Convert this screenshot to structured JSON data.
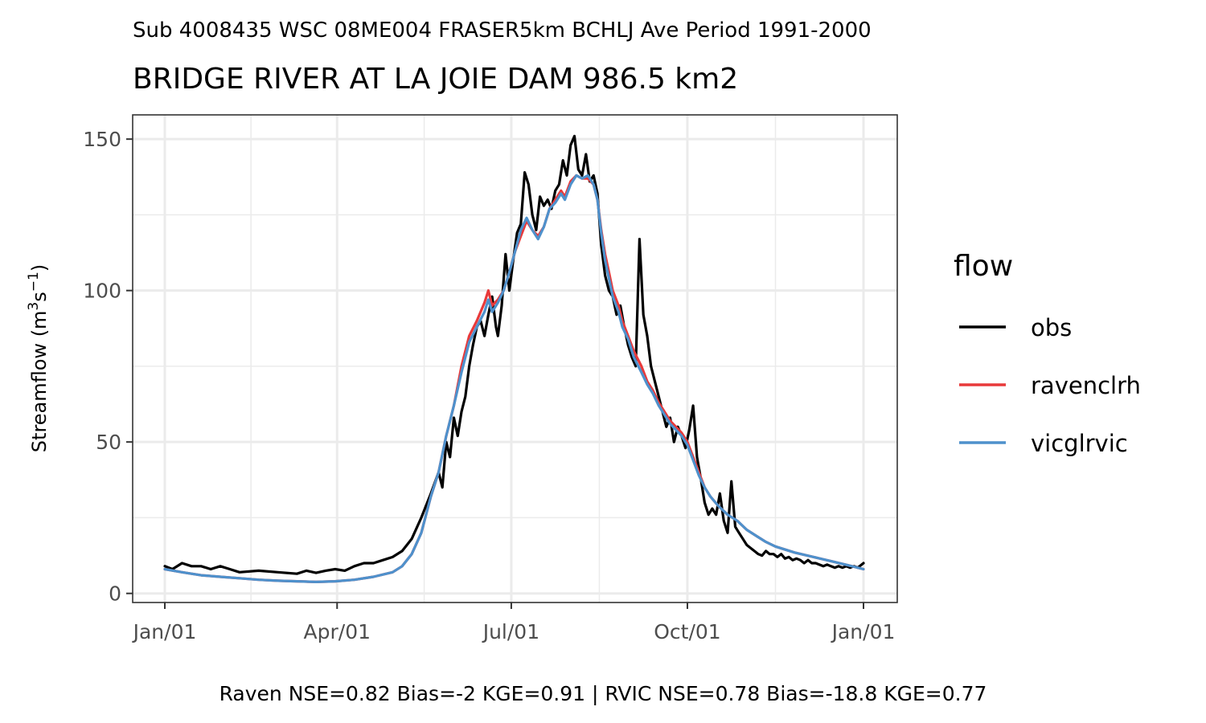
{
  "chart_data": {
    "type": "line",
    "subtitle": "Sub 4008435 WSC 08ME004 FRASER5km BCHLJ Ave Period 1991-2000",
    "title": "BRIDGE RIVER AT LA JOIE DAM 986.5 km2",
    "ylabel_main": "Streamflow (m",
    "ylabel_sup1": "3",
    "ylabel_mid": "s",
    "ylabel_sup2": "−1",
    "ylabel_end": ")",
    "xlabel": "",
    "caption": "Raven NSE=0.82 Bias=-2 KGE=0.91 | RVIC NSE=0.78 Bias=-18.8 KGE=0.77",
    "ylim": [
      -3,
      158
    ],
    "y_ticks": [
      0,
      50,
      100,
      150
    ],
    "y_tick_labels": [
      "0",
      "50",
      "100",
      "150"
    ],
    "x_axis": "day of year",
    "xlim": [
      "Dec/27",
      "Jan/07"
    ],
    "x_ticks": [
      "Jan/01",
      "Apr/01",
      "Jul/01",
      "Oct/01",
      "Jan/01"
    ],
    "x_tick_days": [
      1,
      91,
      182,
      274,
      366
    ],
    "x_minor_days": [
      46,
      136.5,
      228,
      320
    ],
    "y_minor": [
      25,
      75,
      125
    ],
    "grid": true,
    "legend": {
      "title": "flow",
      "position": "right"
    },
    "series": [
      {
        "name": "obs",
        "color": "#000000",
        "points": [
          [
            1,
            9
          ],
          [
            5,
            8
          ],
          [
            10,
            10
          ],
          [
            15,
            9
          ],
          [
            20,
            9
          ],
          [
            25,
            8
          ],
          [
            30,
            9
          ],
          [
            35,
            8
          ],
          [
            40,
            7
          ],
          [
            50,
            7.5
          ],
          [
            60,
            7
          ],
          [
            70,
            6.5
          ],
          [
            75,
            7.5
          ],
          [
            80,
            6.8
          ],
          [
            85,
            7.5
          ],
          [
            90,
            8
          ],
          [
            95,
            7.5
          ],
          [
            100,
            9
          ],
          [
            105,
            10
          ],
          [
            110,
            10
          ],
          [
            115,
            11
          ],
          [
            120,
            12
          ],
          [
            125,
            14
          ],
          [
            130,
            18
          ],
          [
            135,
            25
          ],
          [
            140,
            33
          ],
          [
            144,
            40
          ],
          [
            146,
            35
          ],
          [
            148,
            50
          ],
          [
            150,
            45
          ],
          [
            152,
            58
          ],
          [
            154,
            52
          ],
          [
            156,
            60
          ],
          [
            158,
            65
          ],
          [
            160,
            75
          ],
          [
            162,
            82
          ],
          [
            164,
            88
          ],
          [
            166,
            90
          ],
          [
            168,
            85
          ],
          [
            170,
            92
          ],
          [
            172,
            98
          ],
          [
            174,
            88
          ],
          [
            175,
            85
          ],
          [
            177,
            95
          ],
          [
            179,
            112
          ],
          [
            181,
            100
          ],
          [
            183,
            110
          ],
          [
            185,
            119
          ],
          [
            187,
            122
          ],
          [
            189,
            139
          ],
          [
            191,
            135
          ],
          [
            193,
            125
          ],
          [
            195,
            120
          ],
          [
            197,
            131
          ],
          [
            199,
            128
          ],
          [
            201,
            130
          ],
          [
            203,
            127
          ],
          [
            205,
            133
          ],
          [
            207,
            135
          ],
          [
            209,
            143
          ],
          [
            211,
            138
          ],
          [
            213,
            148
          ],
          [
            215,
            151
          ],
          [
            217,
            140
          ],
          [
            219,
            138
          ],
          [
            221,
            145
          ],
          [
            223,
            136
          ],
          [
            225,
            138
          ],
          [
            227,
            132
          ],
          [
            229,
            115
          ],
          [
            231,
            105
          ],
          [
            233,
            100
          ],
          [
            235,
            98
          ],
          [
            237,
            92
          ],
          [
            239,
            95
          ],
          [
            241,
            88
          ],
          [
            243,
            82
          ],
          [
            245,
            78
          ],
          [
            247,
            75
          ],
          [
            249,
            117
          ],
          [
            251,
            92
          ],
          [
            253,
            85
          ],
          [
            255,
            75
          ],
          [
            257,
            70
          ],
          [
            259,
            65
          ],
          [
            261,
            60
          ],
          [
            263,
            55
          ],
          [
            265,
            58
          ],
          [
            267,
            50
          ],
          [
            269,
            55
          ],
          [
            271,
            52
          ],
          [
            273,
            48
          ],
          [
            275,
            54
          ],
          [
            277,
            62
          ],
          [
            279,
            45
          ],
          [
            281,
            38
          ],
          [
            283,
            30
          ],
          [
            285,
            26
          ],
          [
            287,
            28
          ],
          [
            289,
            26
          ],
          [
            291,
            33
          ],
          [
            293,
            24
          ],
          [
            295,
            20
          ],
          [
            297,
            37
          ],
          [
            299,
            22
          ],
          [
            301,
            20
          ],
          [
            303,
            18
          ],
          [
            305,
            16
          ],
          [
            307,
            15
          ],
          [
            309,
            14
          ],
          [
            311,
            13
          ],
          [
            313,
            12.5
          ],
          [
            315,
            14
          ],
          [
            317,
            13
          ],
          [
            319,
            13
          ],
          [
            321,
            12
          ],
          [
            323,
            13
          ],
          [
            325,
            11.5
          ],
          [
            327,
            12
          ],
          [
            329,
            11
          ],
          [
            331,
            11.5
          ],
          [
            333,
            11
          ],
          [
            335,
            10
          ],
          [
            337,
            11
          ],
          [
            339,
            10
          ],
          [
            341,
            10
          ],
          [
            343,
            9.5
          ],
          [
            345,
            9
          ],
          [
            347,
            9.5
          ],
          [
            349,
            9
          ],
          [
            351,
            8.5
          ],
          [
            353,
            9
          ],
          [
            355,
            8.5
          ],
          [
            357,
            9
          ],
          [
            359,
            8.5
          ],
          [
            361,
            9
          ],
          [
            363,
            8.5
          ],
          [
            366,
            10
          ]
        ]
      },
      {
        "name": "ravenclrh",
        "color": "#e8393a",
        "points": [
          [
            1,
            8
          ],
          [
            10,
            7
          ],
          [
            20,
            6
          ],
          [
            30,
            5.5
          ],
          [
            40,
            5
          ],
          [
            50,
            4.5
          ],
          [
            60,
            4.2
          ],
          [
            70,
            4
          ],
          [
            80,
            3.8
          ],
          [
            90,
            4
          ],
          [
            100,
            4.5
          ],
          [
            110,
            5.5
          ],
          [
            120,
            7
          ],
          [
            125,
            9
          ],
          [
            130,
            13
          ],
          [
            135,
            20
          ],
          [
            140,
            32
          ],
          [
            144,
            40
          ],
          [
            148,
            52
          ],
          [
            152,
            62
          ],
          [
            156,
            75
          ],
          [
            160,
            85
          ],
          [
            164,
            90
          ],
          [
            168,
            96
          ],
          [
            170,
            100
          ],
          [
            172,
            95
          ],
          [
            175,
            97
          ],
          [
            178,
            100
          ],
          [
            181,
            106
          ],
          [
            184,
            113
          ],
          [
            187,
            118
          ],
          [
            190,
            123
          ],
          [
            193,
            120
          ],
          [
            196,
            118
          ],
          [
            199,
            121
          ],
          [
            202,
            127
          ],
          [
            205,
            130
          ],
          [
            208,
            133
          ],
          [
            210,
            131
          ],
          [
            213,
            136
          ],
          [
            216,
            138
          ],
          [
            219,
            137
          ],
          [
            222,
            137
          ],
          [
            225,
            135
          ],
          [
            227,
            130
          ],
          [
            229,
            120
          ],
          [
            231,
            112
          ],
          [
            233,
            106
          ],
          [
            235,
            100
          ],
          [
            238,
            95
          ],
          [
            240,
            90
          ],
          [
            243,
            85
          ],
          [
            246,
            80
          ],
          [
            250,
            75
          ],
          [
            253,
            70
          ],
          [
            256,
            67
          ],
          [
            259,
            63
          ],
          [
            262,
            60
          ],
          [
            265,
            57
          ],
          [
            268,
            55
          ],
          [
            271,
            53
          ],
          [
            274,
            50
          ],
          [
            277,
            45
          ],
          [
            280,
            40
          ],
          [
            283,
            35
          ],
          [
            286,
            32
          ],
          [
            290,
            29
          ],
          [
            295,
            26
          ],
          [
            300,
            24
          ],
          [
            305,
            21
          ],
          [
            310,
            19
          ],
          [
            315,
            17
          ],
          [
            320,
            15.5
          ],
          [
            330,
            13.5
          ],
          [
            340,
            12
          ],
          [
            350,
            10.5
          ],
          [
            360,
            9
          ],
          [
            366,
            8
          ]
        ]
      },
      {
        "name": "vicglrvic",
        "color": "#4e91cc",
        "points": [
          [
            1,
            8
          ],
          [
            10,
            7
          ],
          [
            20,
            6
          ],
          [
            30,
            5.5
          ],
          [
            40,
            5
          ],
          [
            50,
            4.5
          ],
          [
            60,
            4.2
          ],
          [
            70,
            4
          ],
          [
            80,
            3.8
          ],
          [
            90,
            4
          ],
          [
            100,
            4.5
          ],
          [
            110,
            5.5
          ],
          [
            120,
            7
          ],
          [
            125,
            9
          ],
          [
            130,
            13
          ],
          [
            135,
            20
          ],
          [
            140,
            32
          ],
          [
            144,
            40
          ],
          [
            148,
            52
          ],
          [
            152,
            62
          ],
          [
            156,
            73
          ],
          [
            160,
            83
          ],
          [
            164,
            88
          ],
          [
            168,
            93
          ],
          [
            170,
            97
          ],
          [
            172,
            93
          ],
          [
            175,
            96
          ],
          [
            178,
            100
          ],
          [
            181,
            106
          ],
          [
            184,
            113
          ],
          [
            187,
            120
          ],
          [
            190,
            124
          ],
          [
            193,
            120
          ],
          [
            196,
            117
          ],
          [
            199,
            121
          ],
          [
            202,
            127
          ],
          [
            205,
            129
          ],
          [
            208,
            132
          ],
          [
            210,
            130
          ],
          [
            213,
            135
          ],
          [
            216,
            138
          ],
          [
            219,
            137
          ],
          [
            222,
            138
          ],
          [
            225,
            135
          ],
          [
            227,
            130
          ],
          [
            229,
            119
          ],
          [
            231,
            110
          ],
          [
            233,
            104
          ],
          [
            235,
            98
          ],
          [
            238,
            93
          ],
          [
            240,
            88
          ],
          [
            243,
            84
          ],
          [
            246,
            78
          ],
          [
            250,
            73
          ],
          [
            253,
            69
          ],
          [
            256,
            66
          ],
          [
            259,
            62
          ],
          [
            262,
            59
          ],
          [
            265,
            56
          ],
          [
            268,
            54
          ],
          [
            271,
            52
          ],
          [
            274,
            49
          ],
          [
            277,
            44
          ],
          [
            280,
            39
          ],
          [
            283,
            35
          ],
          [
            286,
            32
          ],
          [
            290,
            29
          ],
          [
            295,
            26
          ],
          [
            300,
            24
          ],
          [
            305,
            21
          ],
          [
            310,
            19
          ],
          [
            315,
            17
          ],
          [
            320,
            15.5
          ],
          [
            330,
            13.5
          ],
          [
            340,
            12
          ],
          [
            350,
            10.5
          ],
          [
            360,
            9
          ],
          [
            366,
            8
          ]
        ]
      }
    ]
  }
}
